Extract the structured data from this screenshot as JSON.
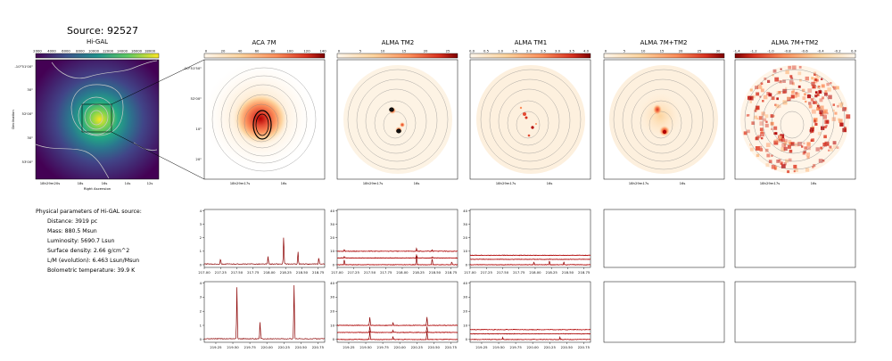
{
  "figure": {
    "title": "Source: 92527"
  },
  "colors": {
    "frame": "#000000",
    "spectrum_line": "#8b0000",
    "fit_line": "#cc0000",
    "contour": "#888888",
    "hg_contour": "#c8c8c8"
  },
  "panels": {
    "higal": {
      "title": "Hi-GAL",
      "colorbar_ticks": [
        "2000",
        "4000",
        "6000",
        "8000",
        "10000",
        "12000",
        "14000",
        "16000",
        "18000"
      ],
      "ytick_labels": [
        "-10°51'00\"",
        "30\"",
        "52'00\"",
        "30\"",
        "53'00\""
      ],
      "xtick_labels": [
        "18h29m20s",
        "18s",
        "16s",
        "14s",
        "12s"
      ],
      "xlabel": "Right Ascension",
      "ylabel": "Declination",
      "colormap": "viridis"
    },
    "aca": {
      "title": "ACA 7M",
      "colorbar_ticks": [
        "0",
        "20",
        "40",
        "60",
        "80",
        "100",
        "120",
        "140"
      ],
      "ytick_labels": [
        "-10°51'50\"",
        "52'00\"",
        "10\"",
        "20\""
      ],
      "xtick_labels": [
        "18h29m17s",
        "16s"
      ]
    },
    "tm2": {
      "title": "ALMA TM2",
      "colorbar_ticks": [
        "0",
        "5",
        "10",
        "15",
        "20",
        "25"
      ],
      "xtick_labels": [
        "18h29m17s",
        "16s"
      ]
    },
    "tm1": {
      "title": "ALMA TM1",
      "colorbar_ticks": [
        "0.0",
        "0.5",
        "1.0",
        "1.5",
        "2.0",
        "2.5",
        "3.0",
        "3.5",
        "4.0"
      ],
      "xtick_labels": [
        "18h29m17s",
        "16s"
      ]
    },
    "comb1": {
      "title": "ALMA 7M+TM2",
      "colorbar_ticks": [
        "0",
        "5",
        "10",
        "15",
        "20",
        "25",
        "30"
      ],
      "xtick_labels": [
        "18h29m17s",
        "16s"
      ]
    },
    "comb2": {
      "title": "ALMA 7M+TM2",
      "colorbar_ticks": [
        "-1.4",
        "-1.2",
        "-1.0",
        "-0.8",
        "-0.6",
        "-0.4",
        "-0.2",
        "0.0"
      ],
      "xtick_labels": [
        "18h29m17s",
        "16s"
      ]
    }
  },
  "params": {
    "heading": "Physical parameters of Hi-GAL source:",
    "lines": [
      "Distance: 3919 pc",
      "Mass: 880.5 Msun",
      "Luminosity: 5690.7 Lsun",
      "Surface density: 2.66 g/cm^2",
      "L/M (evolution): 6.463 Lsun/Msun",
      "Bolometric temperature: 39.9 K"
    ]
  },
  "chart_data": [
    {
      "type": "line",
      "panel": "ACA 7M upper band",
      "xticks": [
        "217.00",
        "217.25",
        "217.50",
        "217.75",
        "218.00",
        "218.25",
        "218.50",
        "218.75"
      ],
      "yticks": [
        "0",
        "1",
        "2",
        "3",
        "4"
      ],
      "xlim": [
        217.0,
        218.85
      ],
      "ylim": [
        -0.2,
        4.1
      ],
      "baseline": 0.05,
      "lines": [
        [
          217.25,
          0.4
        ],
        [
          217.98,
          0.55
        ],
        [
          218.22,
          2.1
        ],
        [
          218.44,
          0.95
        ],
        [
          218.76,
          0.5
        ]
      ]
    },
    {
      "type": "line",
      "panel": "ALMA TM2 upper band",
      "xticks": [
        "217.00",
        "217.25",
        "217.50",
        "217.75",
        "218.00",
        "218.25",
        "218.50",
        "218.75"
      ],
      "yticks": [
        "0",
        "10",
        "20",
        "30",
        "40"
      ],
      "xlim": [
        217.0,
        218.85
      ],
      "ylim": [
        -2,
        41
      ],
      "series": [
        {
          "offset": 10,
          "lines": [
            [
              217.11,
              1.5
            ],
            [
              218.22,
              2.5
            ],
            [
              218.46,
              1.5
            ]
          ]
        },
        {
          "offset": 5,
          "lines": [
            [
              217.11,
              1.0
            ],
            [
              218.22,
              2.0
            ],
            [
              218.46,
              1.0
            ]
          ]
        },
        {
          "offset": 0,
          "lines": [
            [
              217.11,
              4.0
            ],
            [
              218.22,
              8.0
            ],
            [
              218.46,
              4.5
            ],
            [
              218.76,
              2.0
            ]
          ]
        }
      ]
    },
    {
      "type": "line",
      "panel": "ALMA TM1 upper band",
      "xticks": [
        "217.00",
        "217.25",
        "217.50",
        "217.75",
        "218.00",
        "218.25",
        "218.50",
        "218.75"
      ],
      "yticks": [
        "0",
        "10",
        "20",
        "30",
        "40"
      ],
      "xlim": [
        217.0,
        218.85
      ],
      "ylim": [
        -2,
        41
      ],
      "series": [
        {
          "offset": 7,
          "lines": []
        },
        {
          "offset": 4,
          "lines": []
        },
        {
          "offset": 0,
          "lines": [
            [
              217.98,
              2.0
            ],
            [
              218.22,
              3.0
            ],
            [
              218.44,
              2.0
            ]
          ]
        }
      ]
    },
    {
      "type": "line",
      "panel": "ACA 7M lower band",
      "xticks": [
        "219.25",
        "219.50",
        "219.75",
        "220.00",
        "220.25",
        "220.50",
        "220.75"
      ],
      "yticks": [
        "0",
        "1",
        "2",
        "3",
        "4"
      ],
      "xlim": [
        219.08,
        220.85
      ],
      "ylim": [
        -0.2,
        4.1
      ],
      "baseline": 0.05,
      "lines": [
        [
          219.56,
          3.7
        ],
        [
          219.9,
          1.2
        ],
        [
          220.4,
          3.8
        ]
      ]
    },
    {
      "type": "line",
      "panel": "ALMA TM2 lower band",
      "xticks": [
        "219.25",
        "219.50",
        "219.75",
        "220.00",
        "220.25",
        "220.50",
        "220.75"
      ],
      "yticks": [
        "0",
        "10",
        "20",
        "30",
        "40"
      ],
      "xlim": [
        219.08,
        220.85
      ],
      "ylim": [
        -2,
        41
      ],
      "series": [
        {
          "offset": 10,
          "lines": [
            [
              219.56,
              6.0
            ],
            [
              219.9,
              2.0
            ],
            [
              220.4,
              6.0
            ]
          ]
        },
        {
          "offset": 5,
          "lines": [
            [
              219.56,
              4.0
            ],
            [
              219.9,
              1.5
            ],
            [
              220.4,
              4.0
            ]
          ]
        },
        {
          "offset": 0,
          "lines": [
            [
              219.56,
              6.0
            ],
            [
              219.9,
              2.0
            ],
            [
              220.4,
              6.0
            ]
          ]
        }
      ]
    },
    {
      "type": "line",
      "panel": "ALMA TM1 lower band",
      "xticks": [
        "219.25",
        "219.50",
        "219.75",
        "220.00",
        "220.25",
        "220.50",
        "220.75"
      ],
      "yticks": [
        "0",
        "10",
        "20",
        "30",
        "40"
      ],
      "xlim": [
        219.08,
        220.85
      ],
      "ylim": [
        -2,
        41
      ],
      "series": [
        {
          "offset": 7,
          "lines": []
        },
        {
          "offset": 4,
          "lines": []
        },
        {
          "offset": 0,
          "lines": [
            [
              219.56,
              1.5
            ],
            [
              220.4,
              1.5
            ]
          ]
        }
      ]
    },
    {
      "type": "line",
      "panel": "ALMA 7M+TM2 upper band (empty)"
    },
    {
      "type": "line",
      "panel": "ALMA 7M+TM2 (2) upper band (empty)"
    },
    {
      "type": "line",
      "panel": "ALMA 7M+TM2 lower band (empty)"
    },
    {
      "type": "line",
      "panel": "ALMA 7M+TM2 (2) lower band (empty)"
    }
  ]
}
